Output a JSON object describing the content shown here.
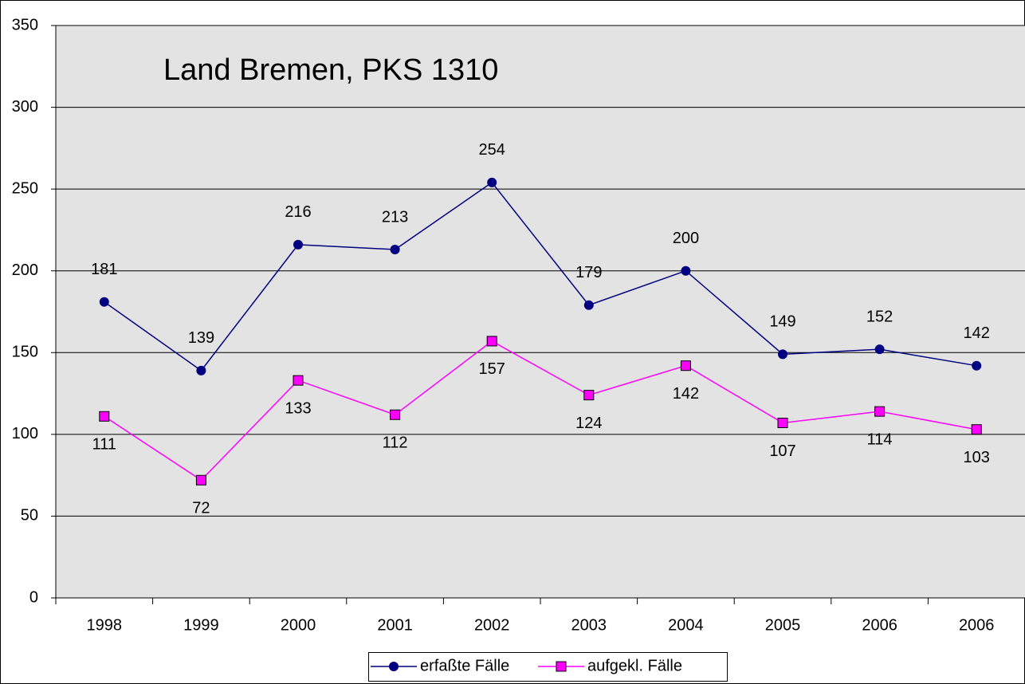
{
  "chart_data": {
    "type": "line",
    "title": "Land Bremen, PKS 1310",
    "categories": [
      "1998",
      "1999",
      "2000",
      "2001",
      "2002",
      "2003",
      "2004",
      "2005",
      "2006",
      "2006"
    ],
    "series": [
      {
        "name": "erfaßte Fälle",
        "color": "#000080",
        "marker": "circle",
        "values": [
          181,
          139,
          216,
          213,
          254,
          179,
          200,
          149,
          152,
          142
        ]
      },
      {
        "name": "aufgekl. Fälle",
        "color": "#ff00ff",
        "marker": "square",
        "values": [
          111,
          72,
          133,
          112,
          157,
          124,
          142,
          107,
          114,
          103
        ]
      }
    ],
    "ylim": [
      0,
      350
    ],
    "yticks": [
      0,
      50,
      100,
      150,
      200,
      250,
      300,
      350
    ],
    "grid": true,
    "legend": "bottom"
  }
}
